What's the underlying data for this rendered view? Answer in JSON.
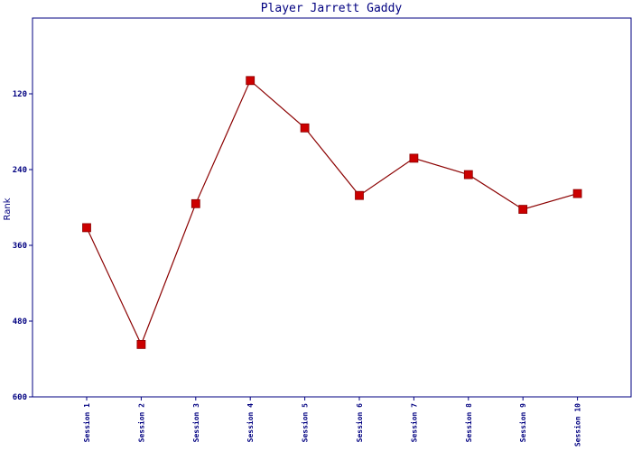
{
  "chart_data": {
    "type": "line",
    "title": "Player Jarrett Gaddy",
    "xlabel": "",
    "ylabel": "Rank",
    "y_inverted": true,
    "ylim": [
      0,
      600
    ],
    "yticks": [
      120,
      240,
      360,
      480,
      600
    ],
    "categories": [
      "Session 1",
      "Session 2",
      "Session 3",
      "Session 4",
      "Session 5",
      "Session 6",
      "Session 7",
      "Session 8",
      "Session 9",
      "Session 10"
    ],
    "series": [
      {
        "values": [
          332,
          517,
          294,
          99,
          174,
          281,
          222,
          248,
          303,
          278
        ]
      }
    ],
    "grid": false,
    "colors": {
      "line": "#8b0000",
      "marker": "#cc0000",
      "axis": "#000080",
      "text": "#000080"
    }
  }
}
